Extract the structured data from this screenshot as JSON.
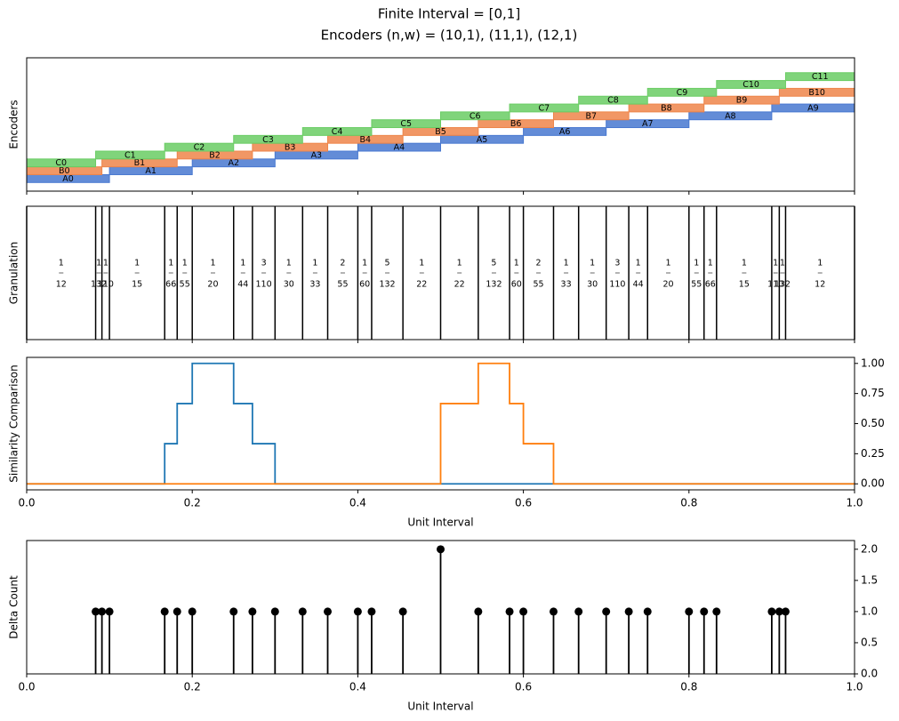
{
  "chart_data": [
    {
      "type": "intervals",
      "title": "Finite Interval = [0,1]",
      "subtitle": "Encoders (n,w) = (10,1), (11,1), (12,1)",
      "ylabel": "Encoders",
      "xlim": [
        0,
        1
      ],
      "xticks": [
        0,
        0.2,
        0.4,
        0.6,
        0.8,
        1
      ],
      "xtick_labels": false,
      "series": [
        {
          "color": "#4878d0",
          "labels": [
            "A0",
            "A1",
            "A2",
            "A3",
            "A4",
            "A5",
            "A6",
            "A7",
            "A8",
            "A9"
          ],
          "edges": [
            0,
            0.1,
            0.2,
            0.3,
            0.4,
            0.5,
            0.6,
            0.7,
            0.8,
            0.9,
            1
          ]
        },
        {
          "color": "#ee854a",
          "labels": [
            "B0",
            "B1",
            "B2",
            "B3",
            "B4",
            "B5",
            "B6",
            "B7",
            "B8",
            "B9",
            "B10"
          ],
          "edges": [
            0,
            0.0909,
            0.1818,
            0.2727,
            0.3636,
            0.4545,
            0.5455,
            0.6364,
            0.7273,
            0.8182,
            0.9091,
            1
          ]
        },
        {
          "color": "#6acc64",
          "labels": [
            "C0",
            "C1",
            "C2",
            "C3",
            "C4",
            "C5",
            "C6",
            "C7",
            "C8",
            "C9",
            "C10",
            "C11"
          ],
          "edges": [
            0,
            0.0833,
            0.1667,
            0.25,
            0.3333,
            0.4167,
            0.5,
            0.5833,
            0.6667,
            0.75,
            0.8333,
            0.9167,
            1
          ]
        }
      ]
    },
    {
      "type": "granulation",
      "ylabel": "Granulation",
      "xlim": [
        0,
        1
      ],
      "xticks": [
        0,
        0.2,
        0.4,
        0.6,
        0.8,
        1
      ],
      "xtick_labels": false,
      "edges": [
        0,
        0.0833,
        0.0909,
        0.1,
        0.1667,
        0.1818,
        0.2,
        0.25,
        0.2727,
        0.3,
        0.3333,
        0.3636,
        0.4,
        0.4167,
        0.4545,
        0.5,
        0.5455,
        0.5833,
        0.6,
        0.6364,
        0.6667,
        0.7,
        0.7273,
        0.75,
        0.8,
        0.8182,
        0.8333,
        0.9,
        0.9091,
        0.9167,
        1
      ],
      "labels": [
        {
          "numerator": "1",
          "denominator": "12"
        },
        {
          "numerator": "1",
          "denominator": "132"
        },
        {
          "numerator": "1",
          "denominator": "110"
        },
        {
          "numerator": "1",
          "denominator": "15"
        },
        {
          "numerator": "1",
          "denominator": "66"
        },
        {
          "numerator": "1",
          "denominator": "55"
        },
        {
          "numerator": "1",
          "denominator": "20"
        },
        {
          "numerator": "1",
          "denominator": "44"
        },
        {
          "numerator": "3",
          "denominator": "110"
        },
        {
          "numerator": "1",
          "denominator": "30"
        },
        {
          "numerator": "1",
          "denominator": "33"
        },
        {
          "numerator": "2",
          "denominator": "55"
        },
        {
          "numerator": "1",
          "denominator": "60"
        },
        {
          "numerator": "5",
          "denominator": "132"
        },
        {
          "numerator": "1",
          "denominator": "22"
        },
        {
          "numerator": "1",
          "denominator": "22"
        },
        {
          "numerator": "5",
          "denominator": "132"
        },
        {
          "numerator": "1",
          "denominator": "60"
        },
        {
          "numerator": "2",
          "denominator": "55"
        },
        {
          "numerator": "1",
          "denominator": "33"
        },
        {
          "numerator": "1",
          "denominator": "30"
        },
        {
          "numerator": "3",
          "denominator": "110"
        },
        {
          "numerator": "1",
          "denominator": "44"
        },
        {
          "numerator": "1",
          "denominator": "20"
        },
        {
          "numerator": "1",
          "denominator": "55"
        },
        {
          "numerator": "1",
          "denominator": "66"
        },
        {
          "numerator": "1",
          "denominator": "15"
        },
        {
          "numerator": "1",
          "denominator": "110"
        },
        {
          "numerator": "1",
          "denominator": "132"
        },
        {
          "numerator": "1",
          "denominator": "12"
        }
      ]
    },
    {
      "type": "line",
      "ylabel": "Similarity Comparison",
      "xlabel": "Unit Interval",
      "xlim": [
        0,
        1
      ],
      "xticks": [
        {
          "value": 0,
          "label": "0.0"
        },
        {
          "value": 0.2,
          "label": "0.2"
        },
        {
          "value": 0.4,
          "label": "0.4"
        },
        {
          "value": 0.6,
          "label": "0.6"
        },
        {
          "value": 0.8,
          "label": "0.8"
        },
        {
          "value": 1,
          "label": "1.0"
        }
      ],
      "ylim": [
        -0.05,
        1.05
      ],
      "yticks": [
        {
          "value": 0,
          "label": "0.00"
        },
        {
          "value": 0.25,
          "label": "0.25"
        },
        {
          "value": 0.5,
          "label": "0.50"
        },
        {
          "value": 0.75,
          "label": "0.75"
        },
        {
          "value": 1,
          "label": "1.00"
        }
      ],
      "series": [
        {
          "color": "#1f77b4",
          "x": [
            0,
            0.1667,
            0.1667,
            0.1818,
            0.1818,
            0.2,
            0.2,
            0.25,
            0.25,
            0.2727,
            0.2727,
            0.3,
            0.3,
            1
          ],
          "values": [
            0,
            0,
            0.3333,
            0.3333,
            0.6667,
            0.6667,
            1,
            1,
            0.6667,
            0.6667,
            0.3333,
            0.3333,
            0,
            0
          ]
        },
        {
          "color": "#ff7f0e",
          "x": [
            0,
            0.5,
            0.5,
            0.5455,
            0.5455,
            0.5833,
            0.5833,
            0.6,
            0.6,
            0.6364,
            0.6364,
            1
          ],
          "values": [
            0,
            0,
            0.6667,
            0.6667,
            1,
            1,
            0.6667,
            0.6667,
            0.3333,
            0.3333,
            0,
            0
          ]
        }
      ]
    },
    {
      "type": "stem",
      "ylabel": "Delta Count",
      "xlabel": "Unit Interval",
      "color": "#000000",
      "xlim": [
        0,
        1
      ],
      "xticks": [
        {
          "value": 0,
          "label": "0.0"
        },
        {
          "value": 0.2,
          "label": "0.2"
        },
        {
          "value": 0.4,
          "label": "0.4"
        },
        {
          "value": 0.6,
          "label": "0.6"
        },
        {
          "value": 0.8,
          "label": "0.8"
        },
        {
          "value": 1,
          "label": "1.0"
        }
      ],
      "ylim": [
        0,
        2.14
      ],
      "yticks": [
        {
          "value": 0,
          "label": "0.0"
        },
        {
          "value": 0.5,
          "label": "0.5"
        },
        {
          "value": 1,
          "label": "1.0"
        },
        {
          "value": 1.5,
          "label": "1.5"
        },
        {
          "value": 2,
          "label": "2.0"
        }
      ],
      "x": [
        0.0833,
        0.0909,
        0.1,
        0.1667,
        0.1818,
        0.2,
        0.25,
        0.2727,
        0.3,
        0.3333,
        0.3636,
        0.4,
        0.4167,
        0.4545,
        0.5,
        0.5455,
        0.5833,
        0.6,
        0.6364,
        0.6667,
        0.7,
        0.7273,
        0.75,
        0.8,
        0.8182,
        0.8333,
        0.9,
        0.9091,
        0.9167
      ],
      "values": [
        1,
        1,
        1,
        1,
        1,
        1,
        1,
        1,
        1,
        1,
        1,
        1,
        1,
        1,
        2,
        1,
        1,
        1,
        1,
        1,
        1,
        1,
        1,
        1,
        1,
        1,
        1,
        1,
        1
      ]
    }
  ]
}
